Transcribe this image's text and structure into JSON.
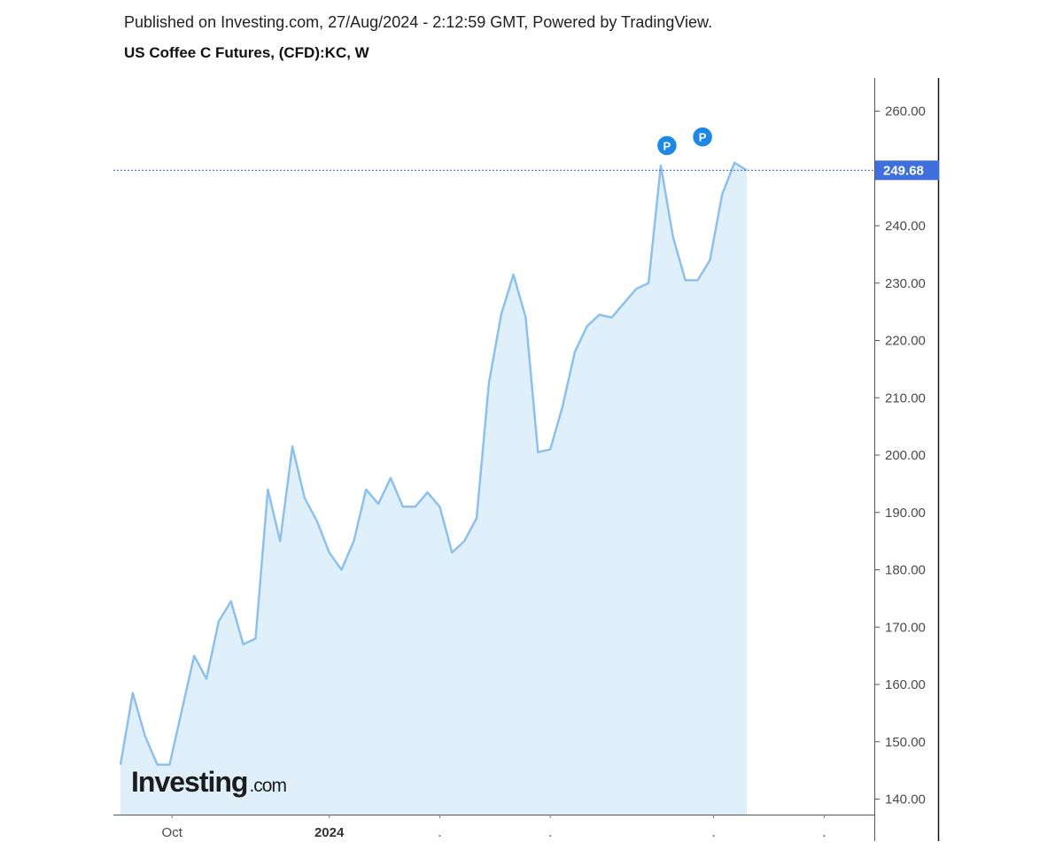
{
  "header": {
    "published": "Published on Investing.com, 27/Aug/2024 - 2:12:59 GMT, Powered by TradingView.",
    "title": "US Coffee C Futures, (CFD):KC, W"
  },
  "logo": {
    "main": "Investing",
    "suffix": ".com"
  },
  "colors": {
    "line": "#8ec0ec",
    "fill": "#dff0fa",
    "price_tag": "#3f6fdc",
    "marker": "#1e88e5"
  },
  "chart_data": {
    "type": "area",
    "title": "US Coffee C Futures, (CFD):KC, W",
    "xlabel": "",
    "ylabel": "",
    "ylim": [
      137,
      262
    ],
    "y_ticks": [
      "260.00",
      "240.00",
      "230.00",
      "220.00",
      "210.00",
      "200.00",
      "190.00",
      "180.00",
      "170.00",
      "160.00",
      "150.00",
      "140.00"
    ],
    "x_tick_labels": [
      {
        "label": "Oct",
        "index": 4.2,
        "bold": false
      },
      {
        "label": "2024",
        "index": 17,
        "bold": true
      }
    ],
    "x_ticks_unlabeled": [
      26,
      35,
      48.3,
      57.3
    ],
    "last_price": "249.68",
    "markers": [
      {
        "label": "P",
        "index": 44.5,
        "value": 254
      },
      {
        "label": "P",
        "index": 47.4,
        "value": 255.5
      }
    ],
    "series": [
      {
        "values": [
          146,
          158.5,
          151,
          146,
          146,
          155.5,
          165,
          161,
          171,
          174.5,
          167,
          168,
          194,
          185,
          201.5,
          192.5,
          188.5,
          183,
          180,
          185,
          194,
          191.5,
          196,
          191,
          191,
          193.5,
          191,
          183,
          185,
          189,
          212.5,
          224.5,
          231.5,
          224,
          200.5,
          201,
          208.5,
          218,
          222.5,
          224.5,
          224,
          226.5,
          229,
          230,
          250.5,
          238,
          230.5,
          230.5,
          234,
          245.5,
          251,
          249.68
        ]
      }
    ]
  }
}
